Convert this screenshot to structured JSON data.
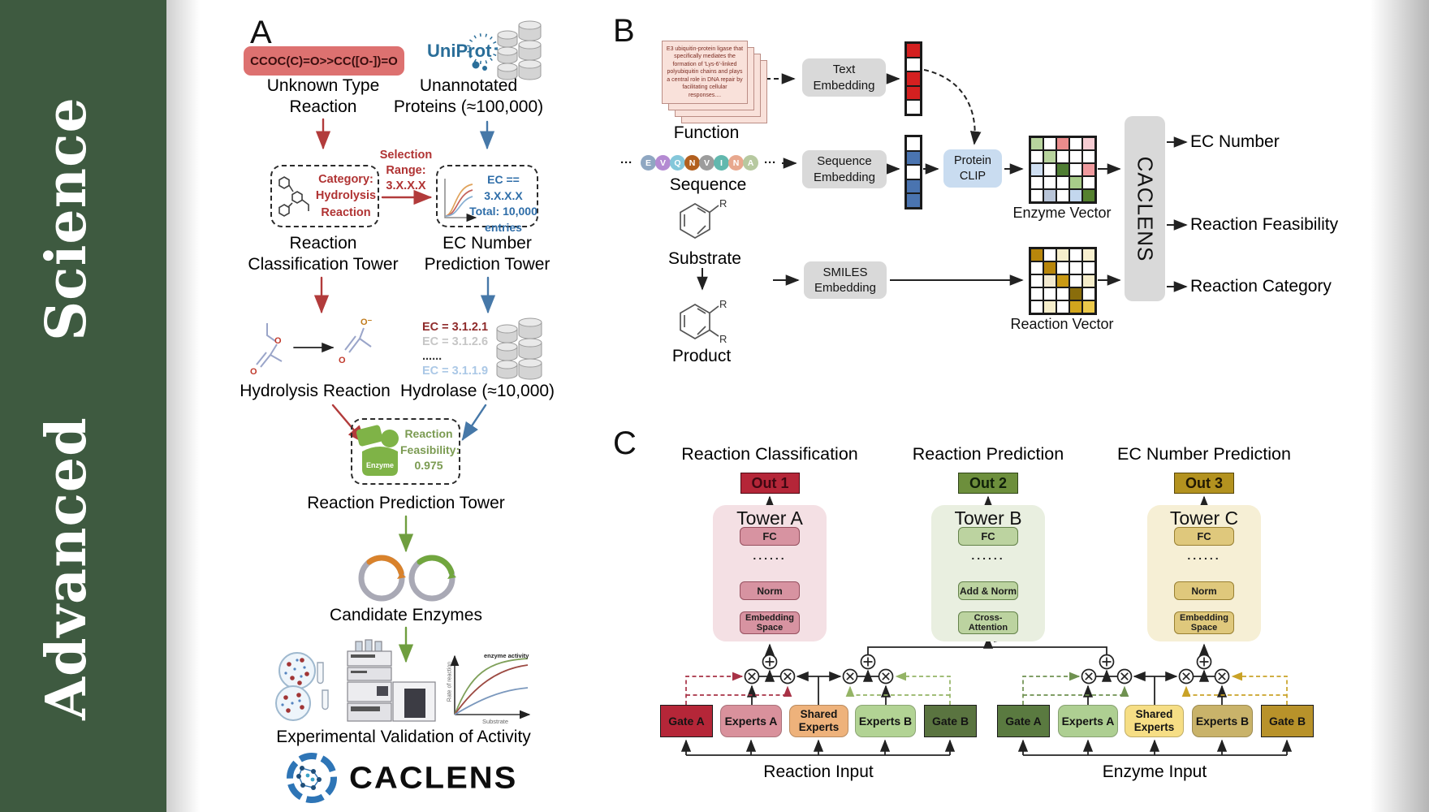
{
  "journal": "Advanced  Science",
  "journal_green": "#3e5a40",
  "a": {
    "panel": "A",
    "smiles": "CCOC(C)=O>>CC([O-])=O",
    "unknown": "Unknown Type\nReaction",
    "uniprot": "UniProt",
    "unannotated": "Unannotated\nProteins (≈100,000)",
    "category": "Category:\nHydrolysis\nReaction",
    "selection": "Selection\nRange:\n3.X.X.X",
    "ec_filter": "EC == 3.X.X.X\nTotal: 10,000\nentries",
    "tower_class": "Reaction\nClassification Tower",
    "tower_ec": "EC Number\nPrediction Tower",
    "ec_list": [
      {
        "text": "EC = 3.1.2.1",
        "color": "#8f2b2b"
      },
      {
        "text": "EC = 3.1.2.6",
        "color": "#c6c6c6"
      },
      {
        "text": "......",
        "color": "#333333"
      },
      {
        "text": "EC = 3.1.1.9",
        "color": "#abc8e6"
      }
    ],
    "hydrolysis": "Hydrolysis Reaction",
    "hydrolase": "Hydrolase (≈10,000)",
    "enzyme_badge": "Enzyme",
    "feasibility": "Reaction\nFeasibility:\n0.975",
    "tower_pred": "Reaction Prediction Tower",
    "candidates": "Candidate Enzymes",
    "validation": "Experimental Validation of Activity",
    "kin_y": "Rate of reaction",
    "kin_x": "Substrate",
    "kin_note": "enzyme activity",
    "atom_o": "O",
    "atom_ominus": "O⁻",
    "brand": "CACLENS"
  },
  "b": {
    "panel": "B",
    "card": "E3 ubiquitin-protein ligase that specifically mediates the formation of 'Lys-6'-linked polyubiquitin chains and plays a central role in DNA repair by facilitating cellular responses....",
    "function": "Function",
    "dots": "···",
    "residues": [
      {
        "letter": "E",
        "color": "#8fa7c2"
      },
      {
        "letter": "V",
        "color": "#b48ad2"
      },
      {
        "letter": "Q",
        "color": "#84c7da"
      },
      {
        "letter": "N",
        "color": "#b25f1e"
      },
      {
        "letter": "V",
        "color": "#9c9c9c"
      },
      {
        "letter": "I",
        "color": "#62b8ae"
      },
      {
        "letter": "N",
        "color": "#e8a88e"
      },
      {
        "letter": "A",
        "color": "#b7c9a0"
      }
    ],
    "sequence": "Sequence",
    "substrate": "Substrate",
    "product": "Product",
    "r": "R",
    "emb_text": "Text\nEmbedding",
    "emb_seq": "Sequence\nEmbedding",
    "emb_smiles": "SMILES\nEmbedding",
    "clip": "Protein\nCLIP",
    "vec_text": [
      "#d42020",
      "#ffffff",
      "#d42020",
      "#d42020",
      "#ffffff"
    ],
    "vec_seq": [
      "#ffffff",
      "#4a74b0",
      "#ffffff",
      "#4a74b0",
      "#4a74b0"
    ],
    "enzyme_vector": "Enzyme Vector",
    "reaction_vector": "Reaction Vector",
    "matrix_enzyme": [
      [
        "#b8d49e",
        "#ffffff",
        "#e98c8c",
        "#ffffff",
        "#f6ccd2"
      ],
      [
        "#ffffff",
        "#b8d49e",
        "#ffffff",
        "#ffffff",
        "#ffffff"
      ],
      [
        "#cfdff2",
        "#ffffff",
        "#4f7d33",
        "#ffffff",
        "#ef9a9e"
      ],
      [
        "#ffffff",
        "#ffffff",
        "#ffffff",
        "#a8cc8a",
        "#ffffff"
      ],
      [
        "#ffffff",
        "#b9c5d8",
        "#ffffff",
        "#c3d7ee",
        "#55812f"
      ]
    ],
    "matrix_reaction": [
      [
        "#b8860b",
        "#ffffff",
        "#f6eecb",
        "#ffffff",
        "#f8f0cf"
      ],
      [
        "#ffffff",
        "#b8860b",
        "#ffffff",
        "#ffffff",
        "#ffffff"
      ],
      [
        "#ffffff",
        "#f3ead0",
        "#c99a16",
        "#ffffff",
        "#f6eecb"
      ],
      [
        "#ffffff",
        "#ffffff",
        "#ffffff",
        "#8a6d0b",
        "#ffffff"
      ],
      [
        "#ffffff",
        "#f6eecb",
        "#ffffff",
        "#d1a51d",
        "#ecc94b"
      ]
    ],
    "caclens": "CACLENS",
    "out_ec": "EC Number",
    "out_feas": "Reaction Feasibility",
    "out_cat": "Reaction Category"
  },
  "c": {
    "panel": "C",
    "title_class": "Reaction Classification",
    "title_pred": "Reaction Prediction",
    "title_ec": "EC Number Prediction",
    "out1": "Out 1",
    "out2": "Out 2",
    "out3": "Out 3",
    "out_colors": [
      {
        "bg": "#b52638"
      },
      {
        "bg": "#6d8f3c"
      },
      {
        "bg": "#b3921f"
      }
    ],
    "towers": [
      {
        "name": "Tower A",
        "fc": "FC",
        "dots": "......",
        "mid": "Norm",
        "bottom": "Embedding\nSpace"
      },
      {
        "name": "Tower B",
        "fc": "FC",
        "dots": "......",
        "mid": "Add & Norm",
        "bottom": "Cross-\nAttention"
      },
      {
        "name": "Tower C",
        "fc": "FC",
        "dots": "......",
        "mid": "Norm",
        "bottom": "Embedding\nSpace"
      }
    ],
    "tower_colors": [
      {
        "bg": "#f4e0e4",
        "box": "#d793a1"
      },
      {
        "bg": "#e9efe0",
        "box": "#bcd3a0"
      },
      {
        "bg": "#f6efd5",
        "box": "#dfc87c"
      }
    ],
    "left": {
      "gate_a": "Gate A",
      "experts_a": "Experts A",
      "shared": "Shared\nExperts",
      "experts_b": "Experts B",
      "gate_b": "Gate B",
      "input": "Reaction Input"
    },
    "left_colors": {
      "gate_a": "#b52638",
      "experts_a": "#d9919c",
      "shared": "#eeb27b",
      "experts_b": "#b2d394",
      "gate_b": "#5a7440"
    },
    "right": {
      "gate_a": "Gate A",
      "experts_a": "Experts A",
      "shared": "Shared\nExperts",
      "experts_b": "Experts B",
      "gate_b": "Gate B",
      "input": "Enzyme Input"
    },
    "right_colors": {
      "gate_a": "#5a7a40",
      "experts_a": "#aecf92",
      "shared": "#f6de85",
      "experts_b": "#c9b36a",
      "gate_b": "#b8922a"
    }
  }
}
